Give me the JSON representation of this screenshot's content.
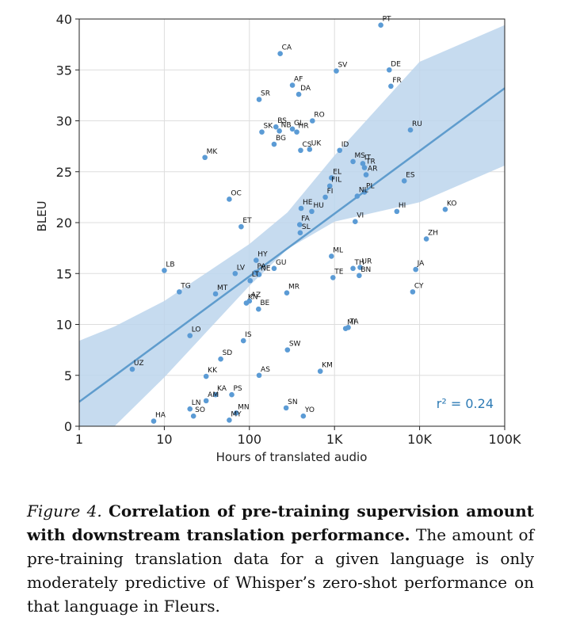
{
  "chart_data": {
    "type": "scatter",
    "xscale": "log",
    "xlabel": "Hours of translated audio",
    "ylabel": "BLEU",
    "xlim": [
      1,
      100000
    ],
    "ylim": [
      0,
      40
    ],
    "xticks": [
      {
        "value": 1,
        "label": "1"
      },
      {
        "value": 10,
        "label": "10"
      },
      {
        "value": 100,
        "label": "100"
      },
      {
        "value": 1000,
        "label": "1K"
      },
      {
        "value": 10000,
        "label": "10K"
      },
      {
        "value": 100000,
        "label": "100K"
      }
    ],
    "yticks": [
      0,
      5,
      10,
      15,
      20,
      25,
      30,
      35,
      40
    ],
    "grid": true,
    "annotation": "r² = 0.24",
    "point_color": "#5b9bd5",
    "line_color": "#5f9ccd",
    "band_color": "#bcd5ec",
    "fit": {
      "slope": 6.16,
      "intercept": 2.4
    },
    "ci_band": [
      {
        "x": 1,
        "lo": -3.2,
        "hi": 8.4
      },
      {
        "x": 2.6,
        "lo": 0.0,
        "hi": 9.8
      },
      {
        "x": 10,
        "lo": 4.8,
        "hi": 12.3
      },
      {
        "x": 100,
        "lo": 13.8,
        "hi": 17.9
      },
      {
        "x": 280,
        "lo": 17.4,
        "hi": 21.0
      },
      {
        "x": 1000,
        "lo": 20.1,
        "hi": 26.6
      },
      {
        "x": 10000,
        "lo": 22.0,
        "hi": 35.8
      },
      {
        "x": 100000,
        "lo": 25.6,
        "hi": 39.4
      }
    ],
    "points": [
      {
        "label": "PT",
        "x": 3500,
        "y": 39.4
      },
      {
        "label": "CA",
        "x": 230,
        "y": 36.6
      },
      {
        "label": "SV",
        "x": 1050,
        "y": 34.9
      },
      {
        "label": "DE",
        "x": 4400,
        "y": 35.0
      },
      {
        "label": "AF",
        "x": 320,
        "y": 33.5
      },
      {
        "label": "DA",
        "x": 380,
        "y": 32.6
      },
      {
        "label": "FR",
        "x": 4600,
        "y": 33.4
      },
      {
        "label": "SR",
        "x": 130,
        "y": 32.1
      },
      {
        "label": "RO",
        "x": 550,
        "y": 30.0
      },
      {
        "label": "BS",
        "x": 205,
        "y": 29.4
      },
      {
        "label": "NB",
        "x": 225,
        "y": 29.0
      },
      {
        "label": "GL",
        "x": 320,
        "y": 29.2
      },
      {
        "label": "RU",
        "x": 7800,
        "y": 29.1
      },
      {
        "label": "SK",
        "x": 140,
        "y": 28.9
      },
      {
        "label": "HR",
        "x": 360,
        "y": 28.9
      },
      {
        "label": "BG",
        "x": 195,
        "y": 27.7
      },
      {
        "label": "CS",
        "x": 400,
        "y": 27.1
      },
      {
        "label": "UK",
        "x": 510,
        "y": 27.2
      },
      {
        "label": "MK",
        "x": 30,
        "y": 26.4
      },
      {
        "label": "ID",
        "x": 1150,
        "y": 27.1
      },
      {
        "label": "MS",
        "x": 1650,
        "y": 26.0
      },
      {
        "label": "IT",
        "x": 2150,
        "y": 25.8
      },
      {
        "label": "TR",
        "x": 2250,
        "y": 25.4
      },
      {
        "label": "AR",
        "x": 2350,
        "y": 24.7
      },
      {
        "label": "EL",
        "x": 920,
        "y": 24.4
      },
      {
        "label": "ES",
        "x": 6600,
        "y": 24.1
      },
      {
        "label": "FIL",
        "x": 880,
        "y": 23.6
      },
      {
        "label": "PL",
        "x": 2250,
        "y": 23.0
      },
      {
        "label": "FI",
        "x": 780,
        "y": 22.5
      },
      {
        "label": "OC",
        "x": 58,
        "y": 22.3
      },
      {
        "label": "NL",
        "x": 1850,
        "y": 22.6
      },
      {
        "label": "HE",
        "x": 405,
        "y": 21.4
      },
      {
        "label": "HU",
        "x": 540,
        "y": 21.1
      },
      {
        "label": "HI",
        "x": 5400,
        "y": 21.1
      },
      {
        "label": "KO",
        "x": 20000,
        "y": 21.3
      },
      {
        "label": "VI",
        "x": 1750,
        "y": 20.1
      },
      {
        "label": "FA",
        "x": 390,
        "y": 19.8
      },
      {
        "label": "ET",
        "x": 80,
        "y": 19.6
      },
      {
        "label": "SL",
        "x": 395,
        "y": 19.0
      },
      {
        "label": "ZH",
        "x": 12000,
        "y": 18.4
      },
      {
        "label": "ML",
        "x": 920,
        "y": 16.7
      },
      {
        "label": "HY",
        "x": 120,
        "y": 16.3
      },
      {
        "label": "LB",
        "x": 10,
        "y": 15.3
      },
      {
        "label": "GU",
        "x": 195,
        "y": 15.5
      },
      {
        "label": "TH",
        "x": 1650,
        "y": 15.5
      },
      {
        "label": "UR",
        "x": 2000,
        "y": 15.6
      },
      {
        "label": "JA",
        "x": 9000,
        "y": 15.4
      },
      {
        "label": "LV",
        "x": 68,
        "y": 15.0
      },
      {
        "label": "PA",
        "x": 118,
        "y": 15.1
      },
      {
        "label": "NE",
        "x": 130,
        "y": 14.9
      },
      {
        "label": "TE",
        "x": 960,
        "y": 14.6
      },
      {
        "label": "BN",
        "x": 1950,
        "y": 14.8
      },
      {
        "label": "LT",
        "x": 102,
        "y": 14.3
      },
      {
        "label": "TG",
        "x": 15,
        "y": 13.2
      },
      {
        "label": "MT",
        "x": 40,
        "y": 13.0
      },
      {
        "label": "MR",
        "x": 275,
        "y": 13.1
      },
      {
        "label": "CY",
        "x": 8300,
        "y": 13.2
      },
      {
        "label": "KN",
        "x": 92,
        "y": 12.1
      },
      {
        "label": "AZ",
        "x": 100,
        "y": 12.3
      },
      {
        "label": "BE",
        "x": 128,
        "y": 11.5
      },
      {
        "label": "MI",
        "x": 1350,
        "y": 9.6
      },
      {
        "label": "TA",
        "x": 1450,
        "y": 9.7
      },
      {
        "label": "LO",
        "x": 20,
        "y": 8.9
      },
      {
        "label": "IS",
        "x": 85,
        "y": 8.4
      },
      {
        "label": "SW",
        "x": 280,
        "y": 7.5
      },
      {
        "label": "SD",
        "x": 46,
        "y": 6.6
      },
      {
        "label": "UZ",
        "x": 4.2,
        "y": 5.6
      },
      {
        "label": "KK",
        "x": 31,
        "y": 4.9
      },
      {
        "label": "AS",
        "x": 130,
        "y": 5.0
      },
      {
        "label": "KM",
        "x": 680,
        "y": 5.4
      },
      {
        "label": "KA",
        "x": 40,
        "y": 3.1
      },
      {
        "label": "PS",
        "x": 62,
        "y": 3.1
      },
      {
        "label": "AM",
        "x": 31,
        "y": 2.5
      },
      {
        "label": "LN",
        "x": 20,
        "y": 1.7
      },
      {
        "label": "SO",
        "x": 22,
        "y": 1.0
      },
      {
        "label": "SN",
        "x": 270,
        "y": 1.8
      },
      {
        "label": "MN",
        "x": 70,
        "y": 1.3
      },
      {
        "label": "MY",
        "x": 58,
        "y": 0.6
      },
      {
        "label": "YO",
        "x": 430,
        "y": 1.0
      },
      {
        "label": "HA",
        "x": 7.5,
        "y": 0.5
      }
    ]
  },
  "caption": {
    "figure_number": "Figure 4.",
    "title": "Correlation of pre-training supervision amount with downstream translation performance.",
    "body": "The amount of pre-training translation data for a given language is only moderately predictive of Whisper’s zero-shot performance on that language in Fleurs."
  }
}
